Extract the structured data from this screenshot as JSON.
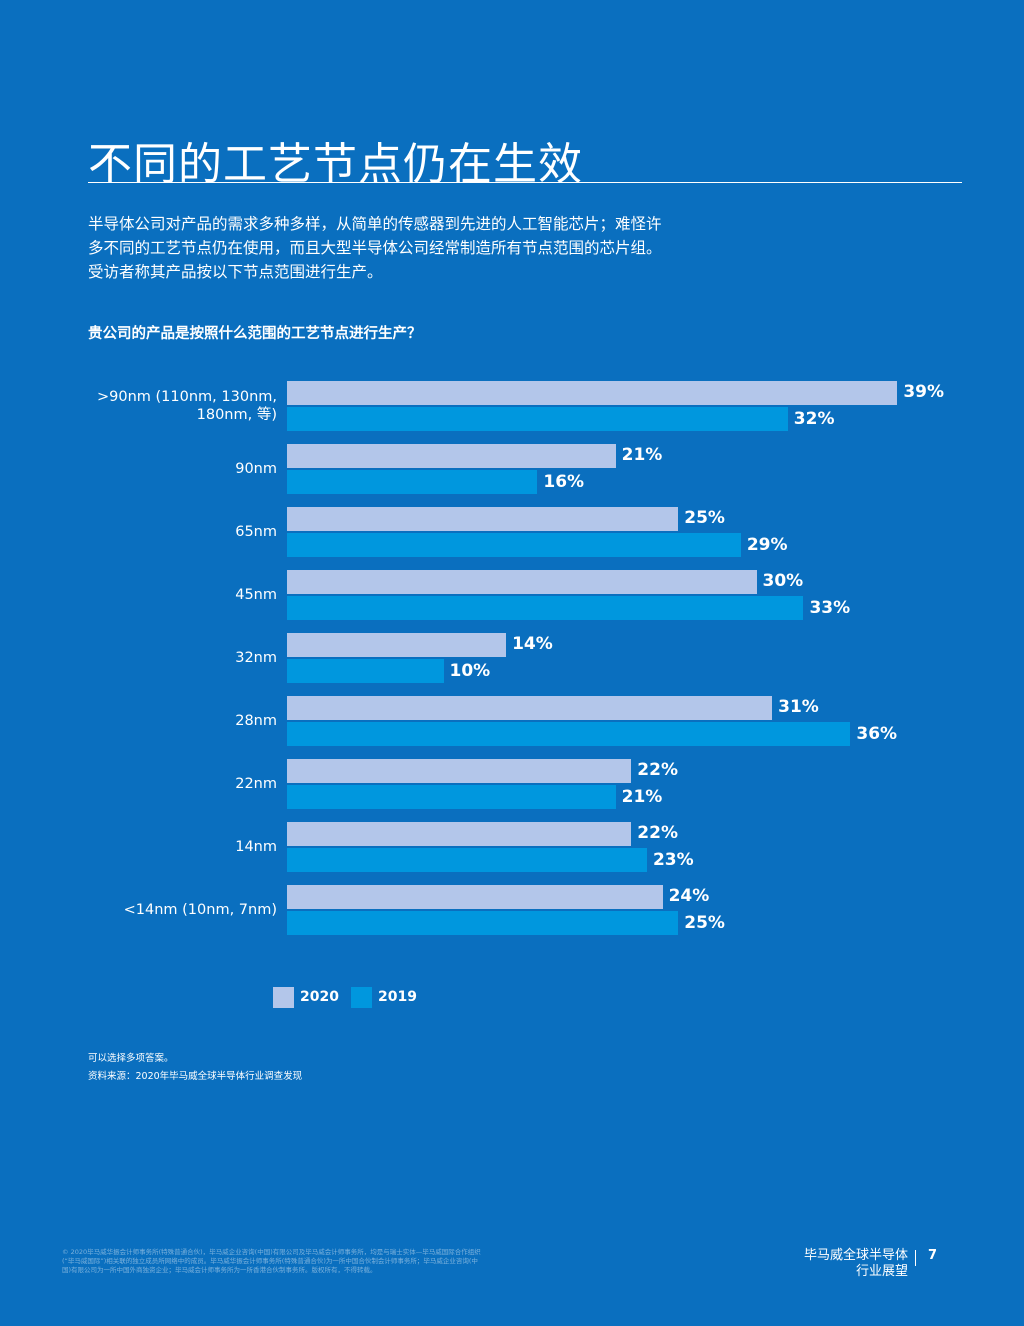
{
  "header": {
    "title": "不同的工艺节点仍在生效",
    "paragraph": [
      "半导体公司对产品的需求多种多样，从简单的传感器到先进的人工智能芯片；难怪许",
      "多不同的工艺节点仍在使用，而且大型半导体公司经常制造所有节点范围的芯片组。",
      "受访者称其产品按以下节点范围进行生产。"
    ]
  },
  "chart_data": {
    "type": "hbar",
    "title": "贵公司的产品是按照什么范围的工艺节点进行生产？",
    "categories": [
      ">90nm (110nm, 130nm, 180nm, 等)",
      "90nm",
      "65nm",
      "45nm",
      "32nm",
      "28nm",
      "22nm",
      "14nm",
      "<14nm (10nm, 7nm)"
    ],
    "series": [
      {
        "name": "2020",
        "color": "#b3c6ea",
        "values": [
          39,
          21,
          25,
          30,
          14,
          31,
          22,
          22,
          24
        ],
        "value_labels": [
          "39%",
          "21%",
          "25%",
          "30%",
          "14%",
          "31%",
          "22%",
          "22%",
          "24%"
        ]
      },
      {
        "name": "2019",
        "color": "#0097de",
        "values": [
          32,
          16,
          29,
          33,
          10,
          36,
          21,
          23,
          25
        ],
        "value_labels": [
          "32%",
          "16%",
          "29%",
          "33%",
          "10%",
          "36%",
          "21%",
          "23%",
          "25%"
        ]
      }
    ]
  },
  "notes": [
    "可以选择多项答案。",
    "资料来源：2020年毕马威全球半导体行业调查发现"
  ],
  "footer": {
    "legal": "© 2020毕马威华振会计师事务所(特殊普通合伙)，毕马威企业咨询(中国)有限公司及毕马威会计师事务所，均是与瑞士实体—毕马威国际合作组织(“毕马威国际”)相关联的独立成员所网络中的成员。毕马威华振会计师事务所(特殊普通合伙)为一所中国合伙制会计师事务所；毕马威企业咨询(中国)有限公司为一所中国外商独资企业；毕马威会计师事务所为一所香港合伙制事务所。版权所有，不得转载。",
    "publication": [
      "毕马威全球半导体",
      "行业展望"
    ],
    "page": "7"
  }
}
